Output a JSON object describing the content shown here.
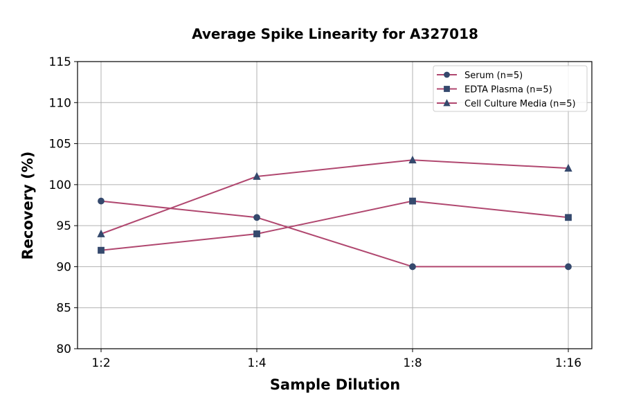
{
  "chart_data": {
    "type": "line",
    "title": "Average Spike Linearity for A327018",
    "xlabel": "Sample Dilution",
    "ylabel": "Recovery (%)",
    "categories": [
      "1:2",
      "1:4",
      "1:8",
      "1:16"
    ],
    "ylim": [
      80,
      115
    ],
    "yticks": [
      80,
      85,
      90,
      95,
      100,
      105,
      110,
      115
    ],
    "grid": true,
    "legend_position": "top-right",
    "line_color": "#b0476f",
    "marker_color": "#35496d",
    "series": [
      {
        "name": "Serum (n=5)",
        "marker": "circle",
        "values": [
          98,
          96,
          90,
          90
        ]
      },
      {
        "name": "EDTA Plasma (n=5)",
        "marker": "square",
        "values": [
          92,
          94,
          98,
          96
        ]
      },
      {
        "name": "Cell Culture Media (n=5)",
        "marker": "triangle",
        "values": [
          94,
          101,
          103,
          102
        ]
      }
    ]
  }
}
